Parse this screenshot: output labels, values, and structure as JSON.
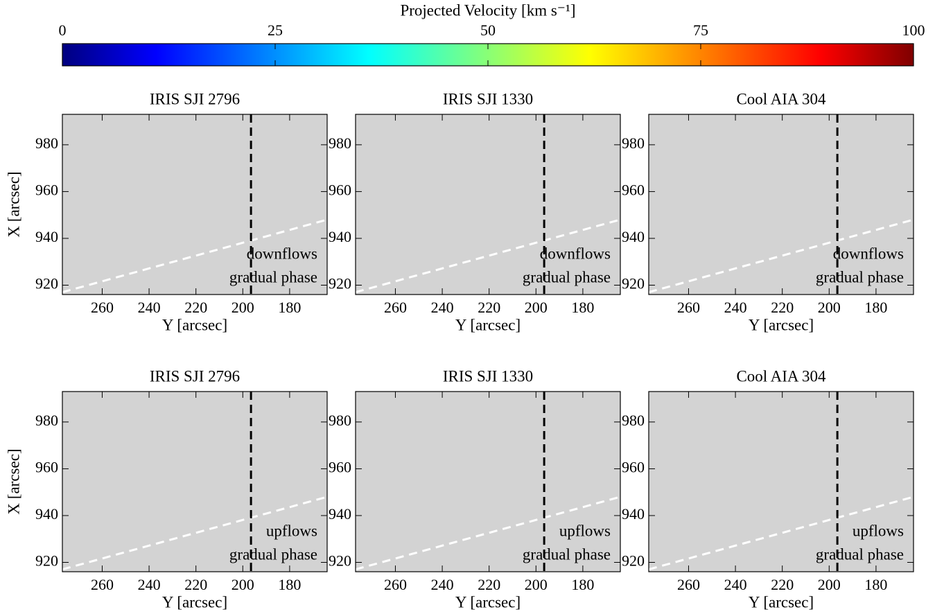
{
  "colorbar": {
    "label": "Projected Velocity [km s⁻¹]",
    "lim": [
      0,
      100
    ],
    "ticks": [
      0,
      25,
      50,
      75,
      100
    ],
    "colormap": [
      {
        "offset": 0,
        "color": "#00007f"
      },
      {
        "offset": 0.11,
        "color": "#0000ff"
      },
      {
        "offset": 0.36,
        "color": "#00ffff"
      },
      {
        "offset": 0.62,
        "color": "#ffff00"
      },
      {
        "offset": 0.89,
        "color": "#ff0000"
      },
      {
        "offset": 1,
        "color": "#7f0000"
      }
    ]
  },
  "panels": [
    {
      "title": "IRIS SJI 2796",
      "flow": "downflows",
      "phase": "gradual phase",
      "xlabel": "Y [arcsec]",
      "ylabel": "X [arcsec]",
      "xlim": [
        277,
        164
      ],
      "ylim": [
        916,
        993
      ],
      "xticks": [
        260,
        240,
        220,
        200,
        180
      ],
      "yticks": [
        920,
        940,
        960,
        980
      ],
      "vline": 196.5,
      "limb": [
        [
          277,
          917
        ],
        [
          164,
          948
        ]
      ]
    },
    {
      "title": "IRIS SJI 1330",
      "flow": "downflows",
      "phase": "gradual phase",
      "xlabel": "Y [arcsec]",
      "xlim": [
        277,
        164
      ],
      "ylim": [
        916,
        993
      ],
      "xticks": [
        260,
        240,
        220,
        200,
        180
      ],
      "yticks": [
        920,
        940,
        960,
        980
      ],
      "vline": 196.5,
      "limb": [
        [
          277,
          917
        ],
        [
          164,
          948
        ]
      ]
    },
    {
      "title": "Cool AIA 304",
      "flow": "downflows",
      "phase": "gradual phase",
      "xlabel": "Y [arcsec]",
      "xlim": [
        277,
        164
      ],
      "ylim": [
        916,
        993
      ],
      "xticks": [
        260,
        240,
        220,
        200,
        180
      ],
      "yticks": [
        920,
        940,
        960,
        980
      ],
      "vline": 196.5,
      "limb": [
        [
          277,
          917
        ],
        [
          164,
          948
        ]
      ]
    },
    {
      "title": "IRIS SJI 2796",
      "flow": "upflows",
      "phase": "gradual phase",
      "xlabel": "Y [arcsec]",
      "ylabel": "X [arcsec]",
      "xlim": [
        277,
        164
      ],
      "ylim": [
        916,
        993
      ],
      "xticks": [
        260,
        240,
        220,
        200,
        180
      ],
      "yticks": [
        920,
        940,
        960,
        980
      ],
      "vline": 196.5,
      "limb": [
        [
          277,
          917
        ],
        [
          164,
          948
        ]
      ]
    },
    {
      "title": "IRIS SJI 1330",
      "flow": "upflows",
      "phase": "gradual phase",
      "xlabel": "Y [arcsec]",
      "xlim": [
        277,
        164
      ],
      "ylim": [
        916,
        993
      ],
      "xticks": [
        260,
        240,
        220,
        200,
        180
      ],
      "yticks": [
        920,
        940,
        960,
        980
      ],
      "vline": 196.5,
      "limb": [
        [
          277,
          917
        ],
        [
          164,
          948
        ]
      ]
    },
    {
      "title": "Cool AIA 304",
      "flow": "upflows",
      "phase": "gradual phase",
      "xlabel": "Y [arcsec]",
      "xlim": [
        277,
        164
      ],
      "ylim": [
        916,
        993
      ],
      "xticks": [
        260,
        240,
        220,
        200,
        180
      ],
      "yticks": [
        920,
        940,
        960,
        980
      ],
      "vline": 196.5,
      "limb": [
        [
          277,
          917
        ],
        [
          164,
          948
        ]
      ]
    }
  ]
}
